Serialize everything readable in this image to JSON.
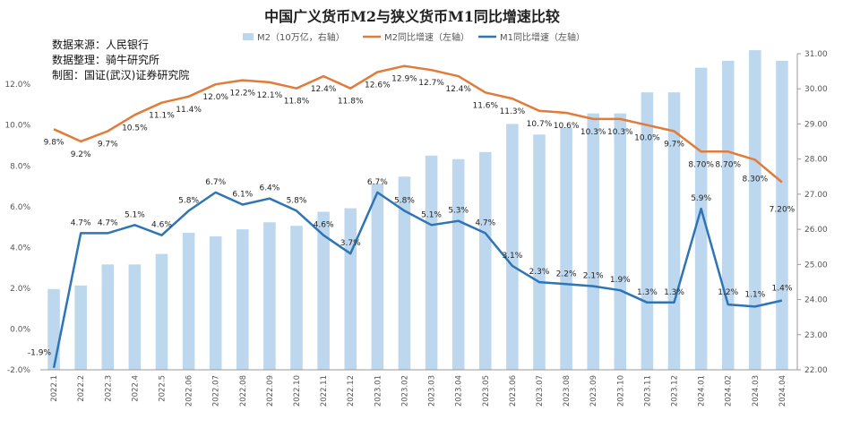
{
  "chart_data": {
    "type": "bar",
    "title": "中国广义货币M2与狭义货币M1同比增速比较",
    "notes": [
      "数据来源：人民银行",
      "数据整理：骑牛研究所",
      "制图：国证(武汉)证券研究院"
    ],
    "categories": [
      "2022.1",
      "2022.2",
      "2022.3",
      "2022.4",
      "2022.5",
      "2022.06",
      "2022.07",
      "2022.08",
      "2022.09",
      "2022.10",
      "2022.11",
      "2022.12",
      "2023.01",
      "2023.02",
      "2023.03",
      "2023.04",
      "2023.05",
      "2023.06",
      "2023.07",
      "2023.08",
      "2023.09",
      "2023.10",
      "2023.11",
      "2023.12",
      "2024.01",
      "2024.02",
      "2024.03",
      "2024.04"
    ],
    "series": [
      {
        "name": "M2（10万亿，右轴）",
        "type": "bar",
        "axis": "right",
        "color": "#bdd7ee",
        "values": [
          24.3,
          24.4,
          25.0,
          25.0,
          25.3,
          25.9,
          25.8,
          26.0,
          26.2,
          26.1,
          26.5,
          26.6,
          27.3,
          27.5,
          28.1,
          28.0,
          28.2,
          29.0,
          28.7,
          28.9,
          29.3,
          29.3,
          29.9,
          29.9,
          30.6,
          30.8,
          31.1,
          30.8
        ],
        "labels": []
      },
      {
        "name": "M2同比增速（左轴）",
        "type": "line",
        "axis": "left",
        "color": "#e07b39",
        "values": [
          9.8,
          9.2,
          9.7,
          10.5,
          11.1,
          11.4,
          12.0,
          12.2,
          12.1,
          11.8,
          12.4,
          11.8,
          12.6,
          12.9,
          12.7,
          12.4,
          11.6,
          11.3,
          10.7,
          10.6,
          10.3,
          10.3,
          10.0,
          9.7,
          8.7,
          8.7,
          8.3,
          7.2
        ],
        "labels": [
          "9.8%",
          "9.2%",
          "9.7%",
          "10.5%",
          "11.1%",
          "11.4%",
          "12.0%",
          "12.2%",
          "12.1%",
          "11.8%",
          "12.4%",
          "11.8%",
          "12.6%",
          "12.9%",
          "12.7%",
          "12.4%",
          "11.6%",
          "11.3%",
          "10.7%",
          "10.6%",
          "10.3%",
          "10.3%",
          "10.0%",
          "9.7%",
          "8.70%",
          "8.70%",
          "8.30%",
          "7.20%"
        ]
      },
      {
        "name": "M1同比增速（左轴）",
        "type": "line",
        "axis": "left",
        "color": "#2e75b6",
        "values": [
          -1.9,
          4.7,
          4.7,
          5.1,
          4.6,
          5.8,
          6.7,
          6.1,
          6.4,
          5.8,
          4.6,
          3.7,
          6.7,
          5.8,
          5.1,
          5.3,
          4.7,
          3.1,
          2.3,
          2.2,
          2.1,
          1.9,
          1.3,
          1.3,
          5.9,
          1.2,
          1.1,
          1.4
        ],
        "labels": [
          "-1.9%",
          "4.7%",
          "4.7%",
          "5.1%",
          "4.6%",
          "5.8%",
          "6.7%",
          "6.1%",
          "6.4%",
          "5.8%",
          "4.6%",
          "3.7%",
          "6.7%",
          "5.8%",
          "5.1%",
          "5.3%",
          "4.7%",
          "3.1%",
          "2.3%",
          "2.2%",
          "2.1%",
          "1.9%",
          "1.3%",
          "1.3%",
          "5.9%",
          "1.2%",
          "1.1%",
          "1.4%"
        ]
      }
    ],
    "y_left": {
      "min": -2,
      "max": 13.5,
      "ticks": [
        -2,
        0,
        2,
        4,
        6,
        8,
        10,
        12
      ],
      "tick_labels": [
        "-2.0%",
        "0.0%",
        "2.0%",
        "4.0%",
        "6.0%",
        "8.0%",
        "10.0%",
        "12.0%"
      ]
    },
    "y_right": {
      "min": 22,
      "max": 31,
      "ticks": [
        22,
        23,
        24,
        25,
        26,
        27,
        28,
        29,
        30,
        31
      ],
      "tick_labels": [
        "22.00",
        "23.00",
        "24.00",
        "25.00",
        "26.00",
        "27.00",
        "28.00",
        "29.00",
        "30.00",
        "31.00"
      ]
    },
    "grid": false,
    "legend_position": "top"
  }
}
